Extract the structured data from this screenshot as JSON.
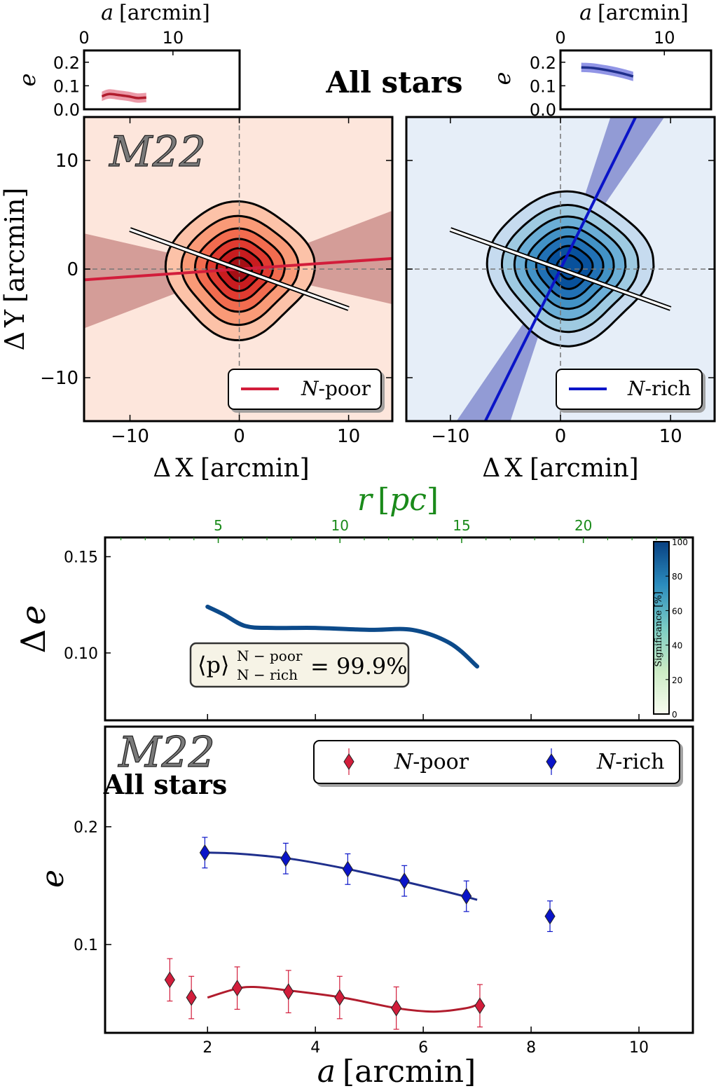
{
  "figure": {
    "main_title": "All stars"
  },
  "colors": {
    "poor": "#d21d3b",
    "poor_dark": "#b11c2d",
    "rich": "#0a14c8",
    "rich_dark": "#1f2f8c",
    "poor_bg": "#fde6dc",
    "rich_bg": "#e6eef8",
    "poor_fill": [
      "#fcc2a8",
      "#f99a77",
      "#f26c4f",
      "#e03b30",
      "#c81c1f",
      "#a50f15"
    ],
    "rich_fill": [
      "#c6dbef",
      "#9ecae1",
      "#6baed6",
      "#4292c6",
      "#2171b5",
      "#08519c"
    ],
    "wedge_poor": "#c98b87",
    "wedge_rich": "#7d86cc",
    "track": "#0c4a8a",
    "green": "#1a8a1a"
  },
  "chart_data": [
    {
      "id": "inset-left",
      "type": "line",
      "xlabel_var": "a",
      "xlabel_unit": "[arcmin]",
      "ylabel": "e",
      "xlim": [
        0,
        17.5
      ],
      "ylim": [
        0,
        0.25
      ],
      "xticks": [
        "0",
        "10"
      ],
      "xtick_values": [
        0,
        10
      ],
      "yticks": [
        "0.0",
        "0.1",
        "0.2"
      ],
      "ytick_values": [
        0,
        0.1,
        0.2
      ],
      "series": [
        {
          "name": "N-poor",
          "x": [
            2,
            2.8,
            4,
            5,
            6,
            7
          ],
          "y": [
            0.055,
            0.065,
            0.06,
            0.055,
            0.048,
            0.05
          ],
          "band": 0.02
        }
      ]
    },
    {
      "id": "inset-right",
      "type": "line",
      "xlabel_var": "a",
      "xlabel_unit": "[arcmin]",
      "ylabel": "e",
      "xlim": [
        0,
        14.5
      ],
      "ylim": [
        0,
        0.25
      ],
      "xticks": [
        "0",
        "10"
      ],
      "xtick_values": [
        0,
        10
      ],
      "yticks": [
        "0.0",
        "0.1",
        "0.2"
      ],
      "ytick_values": [
        0,
        0.1,
        0.2
      ],
      "series": [
        {
          "name": "N-rich",
          "x": [
            2,
            3,
            4,
            5,
            6,
            7
          ],
          "y": [
            0.178,
            0.176,
            0.17,
            0.162,
            0.152,
            0.14
          ],
          "band": 0.02
        }
      ]
    },
    {
      "id": "contour-poor",
      "type": "contour",
      "cluster": "M22",
      "xlabel": "ΔX [arcmin]",
      "xlabel_sym": "Δ",
      "xlabel_var": "X",
      "xlabel_unit": "[arcmin]",
      "ylabel": "ΔY [arcmin]",
      "ylabel_sym": "Δ",
      "ylabel_var": "Y",
      "ylabel_unit": "[arcmin]",
      "xlim": [
        -14.2,
        14
      ],
      "ylim": [
        -14,
        14
      ],
      "xticks": [
        "−10",
        "0",
        "10"
      ],
      "xtick_values": [
        -10,
        0,
        10
      ],
      "yticks": [
        "−10",
        "0",
        "10"
      ],
      "ytick_values": [
        -10,
        0,
        10
      ],
      "center": [
        0,
        0
      ],
      "contour_radii": [
        6.5,
        5.1,
        3.9,
        2.9,
        2.0,
        1.1
      ],
      "contour_axis_ratio": 0.93,
      "population_angle_deg": 4,
      "population_angle_err_deg": 17,
      "rotation_angle_deg": -20,
      "rotation_line_x": [
        -10,
        10
      ],
      "legend": "N-poor",
      "legend_italic": "N",
      "legend_rest": "-poor"
    },
    {
      "id": "contour-rich",
      "type": "contour",
      "xlabel": "ΔX [arcmin]",
      "xlabel_sym": "Δ",
      "xlabel_var": "X",
      "xlabel_unit": "[arcmin]",
      "xlim": [
        -14,
        14
      ],
      "ylim": [
        -14,
        14
      ],
      "xticks": [
        "−10",
        "0",
        "10"
      ],
      "xtick_values": [
        -10,
        0,
        10
      ],
      "center": [
        0.8,
        0.2
      ],
      "contour_radii": [
        7.2,
        5.9,
        4.8,
        3.8,
        2.9,
        2.0,
        1.1
      ],
      "contour_axis_ratio": 0.93,
      "population_angle_deg": 64,
      "population_angle_err_deg": 8,
      "rotation_angle_deg": -20,
      "rotation_line_x": [
        -10,
        10
      ],
      "legend": "N-rich",
      "legend_italic": "N",
      "legend_rest": "-rich"
    },
    {
      "id": "delta-e",
      "type": "line",
      "top_xlabel": "r [pc]",
      "top_xlabel_var": "r",
      "top_xlabel_unit": "pc",
      "top_xlim": [
        0.35,
        24.5
      ],
      "top_xticks": [
        "5",
        "10",
        "15",
        "20"
      ],
      "top_xtick_values": [
        5,
        10,
        15,
        20
      ],
      "ylabel": "Δe",
      "ylabel_sym": "Δ",
      "ylabel_var": "e",
      "ylim": [
        0.065,
        0.16
      ],
      "yticks": [
        "0.10",
        "0.15"
      ],
      "ytick_values": [
        0.1,
        0.15
      ],
      "series": [
        {
          "name": "Δe",
          "x": [
            2,
            2.3,
            2.7,
            3.2,
            4,
            5,
            5.8,
            6.5,
            7
          ],
          "y": [
            0.124,
            0.12,
            0.114,
            0.113,
            0.113,
            0.112,
            0.112,
            0.105,
            0.093
          ]
        }
      ],
      "annotation": "⟨p⟩ N − poor / N − rich = 99.9%",
      "annotation_main": "⟨p⟩",
      "annotation_sup": "N − poor",
      "annotation_sub": "N − rich",
      "annotation_value": "= 99.9%",
      "colorbar": {
        "label": "Significance [%]",
        "ticks": [
          "0",
          "20",
          "40",
          "60",
          "80",
          "100"
        ],
        "tick_values": [
          0,
          20,
          40,
          60,
          80,
          100
        ]
      }
    },
    {
      "id": "ellipticity",
      "type": "scatter",
      "cluster": "M22",
      "subtitle": "All stars",
      "xlabel": "a [arcmin]",
      "xlabel_var": "a",
      "xlabel_unit": "[arcmin]",
      "ylabel": "e",
      "xlim": [
        0.1,
        11
      ],
      "ylim": [
        0.025,
        0.285
      ],
      "xticks": [
        "2",
        "4",
        "6",
        "8",
        "10"
      ],
      "xtick_values": [
        2,
        4,
        6,
        8,
        10
      ],
      "yticks": [
        "0.1",
        "0.2"
      ],
      "ytick_values": [
        0.1,
        0.2
      ],
      "series": [
        {
          "name": "N-poor",
          "legend_italic": "N",
          "legend_rest": "-poor",
          "points": [
            [
              1.3,
              0.07
            ],
            [
              1.7,
              0.055
            ],
            [
              2.55,
              0.063
            ],
            [
              3.5,
              0.06
            ],
            [
              4.45,
              0.055
            ],
            [
              5.5,
              0.046
            ],
            [
              7.05,
              0.048
            ]
          ],
          "errors": [
            0.018,
            0.018,
            0.018,
            0.018,
            0.018,
            0.018,
            0.018
          ],
          "fit_x": [
            2,
            2.5,
            2.85,
            3.5,
            4.5,
            5.5,
            6.2,
            6.8,
            7
          ],
          "fit_y": [
            0.055,
            0.062,
            0.064,
            0.061,
            0.055,
            0.046,
            0.043,
            0.046,
            0.049
          ]
        },
        {
          "name": "N-rich",
          "legend_italic": "N",
          "legend_rest": "-rich",
          "points": [
            [
              1.95,
              0.178
            ],
            [
              3.45,
              0.173
            ],
            [
              4.6,
              0.164
            ],
            [
              5.65,
              0.154
            ],
            [
              6.8,
              0.141
            ],
            [
              8.35,
              0.124
            ]
          ],
          "errors": [
            0.013,
            0.013,
            0.013,
            0.013,
            0.013,
            0.013
          ],
          "fit_x": [
            2,
            2.6,
            3.5,
            4.5,
            5.5,
            6.5,
            7
          ],
          "fit_y": [
            0.178,
            0.177,
            0.173,
            0.165,
            0.155,
            0.144,
            0.138
          ]
        }
      ]
    }
  ]
}
